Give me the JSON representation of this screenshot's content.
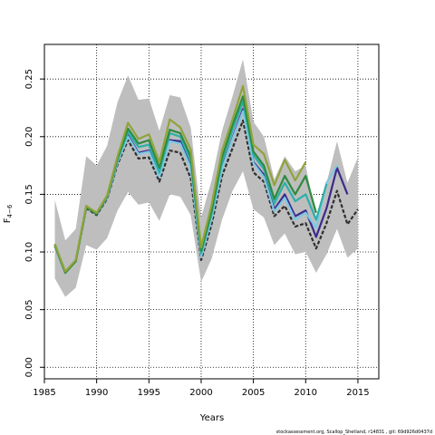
{
  "chart_data": {
    "type": "line",
    "xlabel": "Years",
    "ylabel": "F",
    "ylabel_subscript": "4−6",
    "xlim": [
      1985,
      2017
    ],
    "ylim": [
      -0.01,
      0.28
    ],
    "xticks": [
      1985,
      1990,
      1995,
      2000,
      2005,
      2010,
      2015
    ],
    "yticks": [
      0.0,
      0.05,
      0.1,
      0.15,
      0.2,
      0.25
    ],
    "ytick_labels": [
      "0.00",
      "0.05",
      "0.10",
      "0.15",
      "0.20",
      "0.25"
    ],
    "grid": "dotted",
    "footer": "stockassessment.org, Scallop_Shetland, r14831 , git: 69d926d0437d",
    "band": {
      "x": [
        1986,
        1987,
        1988,
        1989,
        1990,
        1991,
        1992,
        1993,
        1994,
        1995,
        1996,
        1997,
        1998,
        1999,
        2000,
        2001,
        2002,
        2003,
        2004,
        2005,
        2006,
        2007,
        2008,
        2009,
        2010,
        2011,
        2012,
        2013,
        2014,
        2015
      ],
      "upper": [
        0.145,
        0.11,
        0.12,
        0.183,
        0.175,
        0.192,
        0.23,
        0.253,
        0.232,
        0.233,
        0.205,
        0.236,
        0.234,
        0.208,
        0.13,
        0.162,
        0.205,
        0.235,
        0.267,
        0.213,
        0.2,
        0.163,
        0.183,
        0.17,
        0.175,
        0.13,
        0.16,
        0.196,
        0.16,
        0.182
      ],
      "lower": [
        0.077,
        0.061,
        0.069,
        0.106,
        0.102,
        0.112,
        0.136,
        0.152,
        0.141,
        0.143,
        0.127,
        0.15,
        0.148,
        0.132,
        0.074,
        0.094,
        0.128,
        0.153,
        0.17,
        0.137,
        0.13,
        0.106,
        0.116,
        0.098,
        0.1,
        0.082,
        0.098,
        0.12,
        0.095,
        0.103
      ],
      "color": "#bebebe"
    },
    "series": [
      {
        "color": "#2f2f2f",
        "dash": true,
        "x": [
          1986,
          1987,
          1988,
          1989,
          1990,
          1991,
          1992,
          1993,
          1994,
          1995,
          1996,
          1997,
          1998,
          1999,
          2000,
          2001,
          2002,
          2003,
          2004,
          2005,
          2006,
          2007,
          2008,
          2009,
          2010,
          2011,
          2012,
          2013,
          2014,
          2015
        ],
        "y": [
          0.105,
          0.082,
          0.092,
          0.138,
          0.132,
          0.146,
          0.176,
          0.197,
          0.181,
          0.182,
          0.161,
          0.188,
          0.186,
          0.164,
          0.093,
          0.124,
          0.166,
          0.19,
          0.214,
          0.169,
          0.161,
          0.131,
          0.14,
          0.122,
          0.125,
          0.103,
          0.125,
          0.153,
          0.124,
          0.137
        ]
      },
      {
        "color": "#3c2a8c",
        "dash": false,
        "x": [
          1986,
          1987,
          1988,
          1989,
          1990,
          1991,
          1992,
          1993,
          1994,
          1995,
          1996,
          1997,
          1998,
          1999,
          2000,
          2001,
          2002,
          2003,
          2004,
          2005,
          2006,
          2007,
          2008,
          2009,
          2010,
          2011,
          2012,
          2013,
          2014
        ],
        "y": [
          0.105,
          0.082,
          0.092,
          0.139,
          0.133,
          0.147,
          0.178,
          0.201,
          0.186,
          0.188,
          0.166,
          0.197,
          0.196,
          0.174,
          0.097,
          0.13,
          0.173,
          0.199,
          0.224,
          0.178,
          0.167,
          0.137,
          0.15,
          0.131,
          0.136,
          0.113,
          0.138,
          0.173,
          0.15
        ]
      },
      {
        "color": "#7ec8e3",
        "dash": false,
        "x": [
          1986,
          1987,
          1988,
          1989,
          1990,
          1991,
          1992,
          1993,
          1994,
          1995,
          1996,
          1997,
          1998,
          1999,
          2000,
          2001,
          2002,
          2003,
          2004,
          2005,
          2006,
          2007,
          2008,
          2009,
          2010,
          2011,
          2012,
          2013
        ],
        "y": [
          0.105,
          0.082,
          0.092,
          0.139,
          0.133,
          0.147,
          0.178,
          0.2,
          0.185,
          0.187,
          0.165,
          0.196,
          0.194,
          0.173,
          0.096,
          0.129,
          0.172,
          0.198,
          0.222,
          0.177,
          0.165,
          0.135,
          0.147,
          0.128,
          0.134,
          0.121,
          0.16,
          0.175
        ]
      },
      {
        "color": "#2db0a8",
        "dash": false,
        "x": [
          1986,
          1987,
          1988,
          1989,
          1990,
          1991,
          1992,
          1993,
          1994,
          1995,
          1996,
          1997,
          1998,
          1999,
          2000,
          2001,
          2002,
          2003,
          2004,
          2005,
          2006,
          2007,
          2008,
          2009,
          2010,
          2011,
          2012
        ],
        "y": [
          0.106,
          0.082,
          0.092,
          0.139,
          0.133,
          0.148,
          0.18,
          0.204,
          0.191,
          0.193,
          0.169,
          0.203,
          0.2,
          0.179,
          0.099,
          0.133,
          0.178,
          0.206,
          0.23,
          0.184,
          0.172,
          0.142,
          0.16,
          0.144,
          0.15,
          0.128,
          0.159
        ]
      },
      {
        "color": "#2e8b3e",
        "dash": false,
        "x": [
          1986,
          1987,
          1988,
          1989,
          1990,
          1991,
          1992,
          1993,
          1994,
          1995,
          1996,
          1997,
          1998,
          1999,
          2000,
          2001,
          2002,
          2003,
          2004,
          2005,
          2006,
          2007,
          2008,
          2009,
          2010,
          2011
        ],
        "y": [
          0.106,
          0.082,
          0.092,
          0.139,
          0.133,
          0.148,
          0.181,
          0.207,
          0.194,
          0.197,
          0.173,
          0.206,
          0.203,
          0.183,
          0.101,
          0.136,
          0.182,
          0.21,
          0.235,
          0.187,
          0.175,
          0.146,
          0.166,
          0.15,
          0.166,
          0.134
        ]
      },
      {
        "color": "#8fa43a",
        "dash": false,
        "x": [
          1986,
          1987,
          1988,
          1989,
          1990,
          1991,
          1992,
          1993,
          1994,
          1995,
          1996,
          1997,
          1998,
          1999,
          2000,
          2001,
          2002,
          2003,
          2004,
          2005,
          2006,
          2007,
          2008,
          2009,
          2010
        ],
        "y": [
          0.107,
          0.083,
          0.093,
          0.14,
          0.134,
          0.149,
          0.183,
          0.212,
          0.198,
          0.202,
          0.178,
          0.215,
          0.208,
          0.189,
          0.104,
          0.141,
          0.188,
          0.215,
          0.244,
          0.193,
          0.185,
          0.158,
          0.18,
          0.162,
          0.178
        ]
      }
    ]
  }
}
